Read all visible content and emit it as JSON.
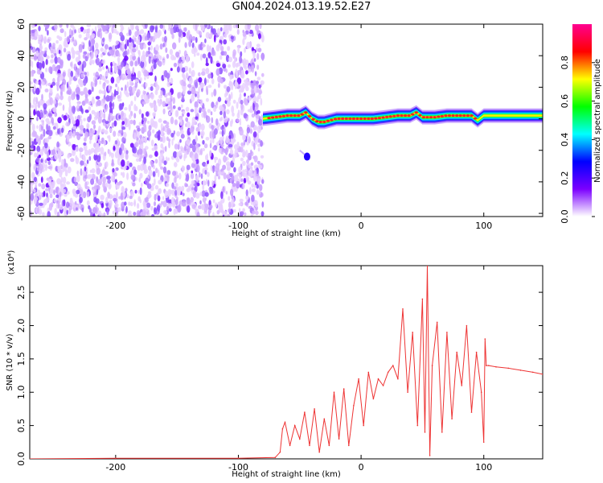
{
  "title": "GN04.2024.013.19.52.E27",
  "chart_data": [
    {
      "type": "heatmap",
      "xlabel": "Height of straight line (km)",
      "ylabel": "Frequency (Hz)",
      "xlim": [
        -270,
        148
      ],
      "ylim": [
        -62,
        60
      ],
      "x_ticks": [
        -200,
        -100,
        0,
        100
      ],
      "x_tick_labels": [
        "-200",
        "-100",
        "0",
        "100"
      ],
      "y_ticks": [
        60,
        40,
        20,
        0,
        -20,
        -40,
        -60
      ],
      "y_tick_labels": [
        "60",
        "40",
        "20",
        "0",
        "-20",
        "-40",
        "-60"
      ],
      "colorbar": {
        "label": "Normalized spectral amplitude",
        "range": [
          0,
          1
        ],
        "ticks": [
          0.0,
          0.2,
          0.4,
          0.6,
          0.8
        ],
        "tick_labels": [
          "0.0",
          "0.2",
          "0.4",
          "0.6",
          "0.8"
        ],
        "colors": [
          "#ffffff",
          "#7b00ff",
          "#0000ff",
          "#00ffff",
          "#00ff00",
          "#ffff00",
          "#ff0000",
          "#ff0090"
        ]
      },
      "noise_region_x": [
        -270,
        -80
      ],
      "signal_band": {
        "x": [
          -80,
          -70,
          -60,
          -50,
          -45,
          -40,
          -35,
          -30,
          -20,
          -10,
          0,
          10,
          20,
          30,
          40,
          45,
          50,
          60,
          70,
          80,
          90,
          95,
          100,
          120,
          148
        ],
        "center_freq": [
          0,
          1,
          2,
          2,
          4,
          0,
          -2,
          -2,
          0,
          0,
          0,
          0,
          1,
          2,
          2,
          4,
          1,
          1,
          2,
          2,
          2,
          -1,
          2,
          2,
          2
        ]
      },
      "secondary_feature": {
        "x": [
          -50,
          -44
        ],
        "freq": [
          -20,
          -24
        ]
      }
    },
    {
      "type": "line",
      "xlabel": "Height of straight line (km)",
      "ylabel": "SNR (10 * v/v)",
      "y_multiplier": "(x10⁴)",
      "xlim": [
        -270,
        148
      ],
      "ylim": [
        0,
        2.9
      ],
      "x_ticks": [
        -200,
        -100,
        0,
        100
      ],
      "x_tick_labels": [
        "-200",
        "-100",
        "0",
        "100"
      ],
      "y_ticks": [
        0.0,
        0.5,
        1.0,
        1.5,
        2.0,
        2.5
      ],
      "y_tick_labels": [
        "0.0",
        "0.5",
        "1.0",
        "1.5",
        "2.0",
        "2.5"
      ],
      "line_color": "#ee3333",
      "series": [
        {
          "x": [
            -270,
            -200,
            -100,
            -70,
            -66,
            -64,
            -62,
            -58,
            -54,
            -50,
            -46,
            -42,
            -38,
            -34,
            -30,
            -26,
            -22,
            -18,
            -14,
            -10,
            -6,
            -2,
            2,
            6,
            10,
            14,
            18,
            22,
            26,
            30,
            34,
            38,
            42,
            46,
            50,
            52,
            54,
            56,
            58,
            62,
            66,
            70,
            74,
            78,
            82,
            86,
            90,
            94,
            98,
            100,
            101,
            102,
            104,
            110,
            120,
            130,
            140,
            148
          ],
          "values": [
            0.0,
            0.01,
            0.01,
            0.02,
            0.1,
            0.45,
            0.55,
            0.2,
            0.5,
            0.3,
            0.7,
            0.2,
            0.75,
            0.1,
            0.6,
            0.2,
            1.0,
            0.3,
            1.05,
            0.2,
            0.8,
            1.2,
            0.5,
            1.3,
            0.9,
            1.2,
            1.1,
            1.3,
            1.4,
            1.2,
            2.25,
            1.0,
            1.9,
            0.5,
            2.4,
            0.4,
            2.9,
            0.05,
            1.4,
            2.05,
            0.4,
            1.9,
            0.6,
            1.6,
            1.1,
            2.0,
            0.7,
            1.6,
            1.0,
            0.25,
            1.8,
            1.4,
            1.4,
            1.38,
            1.36,
            1.33,
            1.3,
            1.27
          ]
        }
      ]
    }
  ]
}
